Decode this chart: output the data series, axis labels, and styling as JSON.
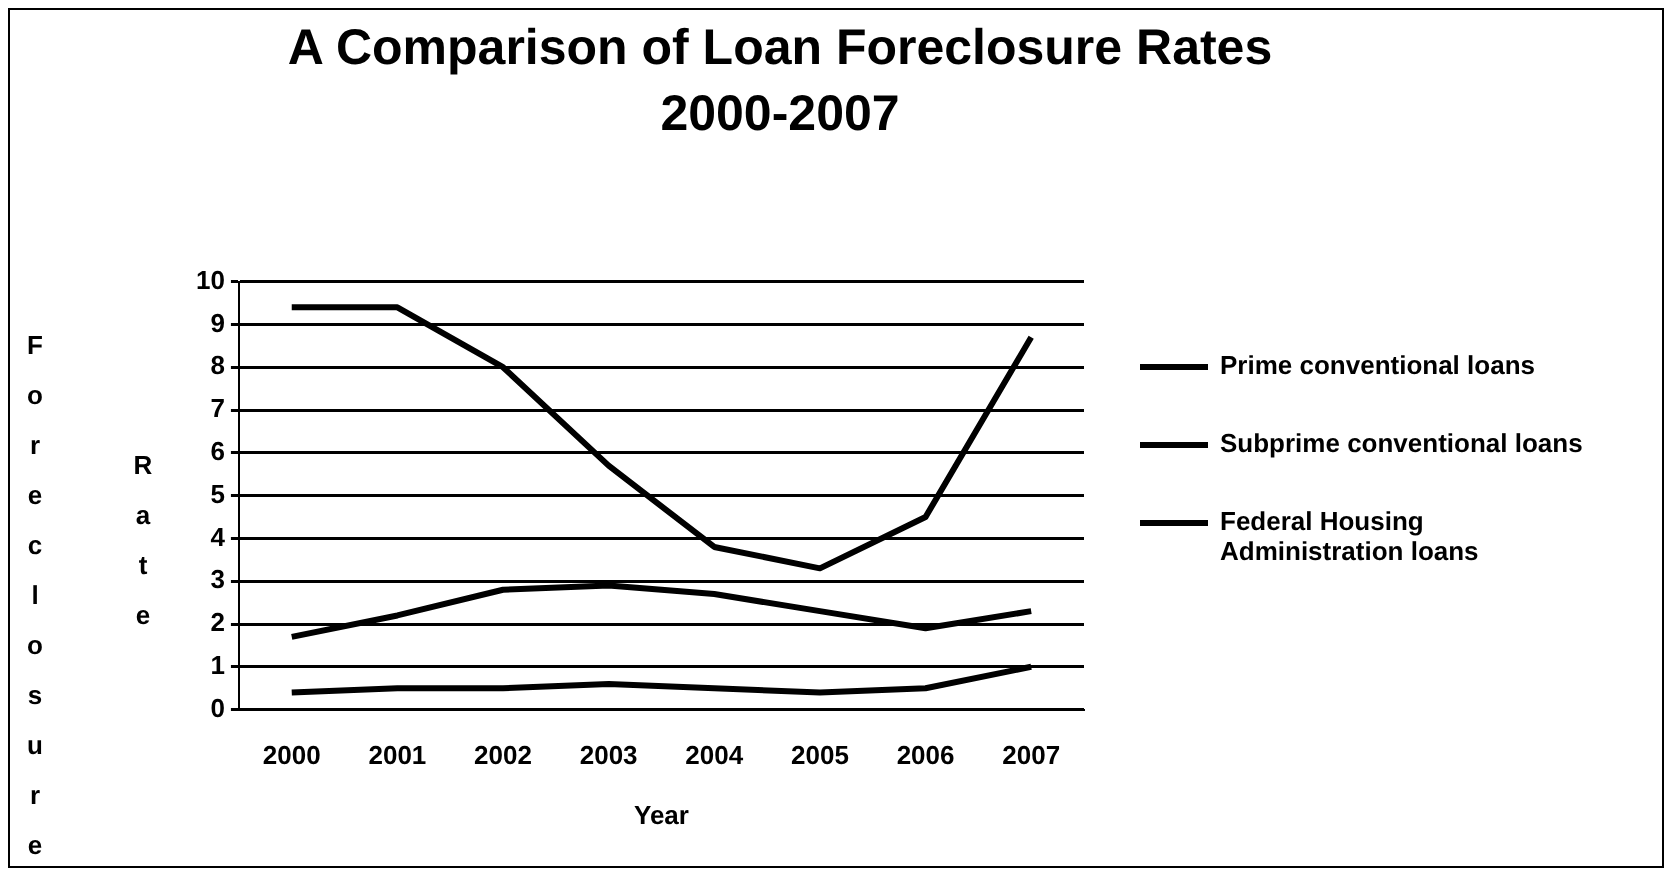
{
  "chart_data": {
    "type": "line",
    "title": "A Comparison of Loan Foreclosure Rates 2000-2007",
    "xlabel": "Year",
    "ylabel": "Foreclosure Rate",
    "categories": [
      "2000",
      "2001",
      "2002",
      "2003",
      "2004",
      "2005",
      "2006",
      "2007"
    ],
    "series": [
      {
        "name": "Prime conventional loans",
        "color": "#000000",
        "values": [
          0.4,
          0.5,
          0.5,
          0.6,
          0.5,
          0.4,
          0.5,
          1.0
        ]
      },
      {
        "name": "Subprime conventional loans",
        "color": "#000000",
        "values": [
          9.4,
          9.4,
          8.0,
          5.7,
          3.8,
          3.3,
          4.5,
          8.7
        ]
      },
      {
        "name": "Federal Housing Administration loans",
        "color": "#000000",
        "values": [
          1.7,
          2.2,
          2.8,
          2.9,
          2.7,
          2.3,
          1.9,
          2.3
        ]
      }
    ],
    "ylim": [
      0,
      10
    ],
    "yticks": [
      0,
      1,
      2,
      3,
      4,
      5,
      6,
      7,
      8,
      9,
      10
    ],
    "grid": "y",
    "legend": "right",
    "marker": "none",
    "line_style": "solid"
  }
}
